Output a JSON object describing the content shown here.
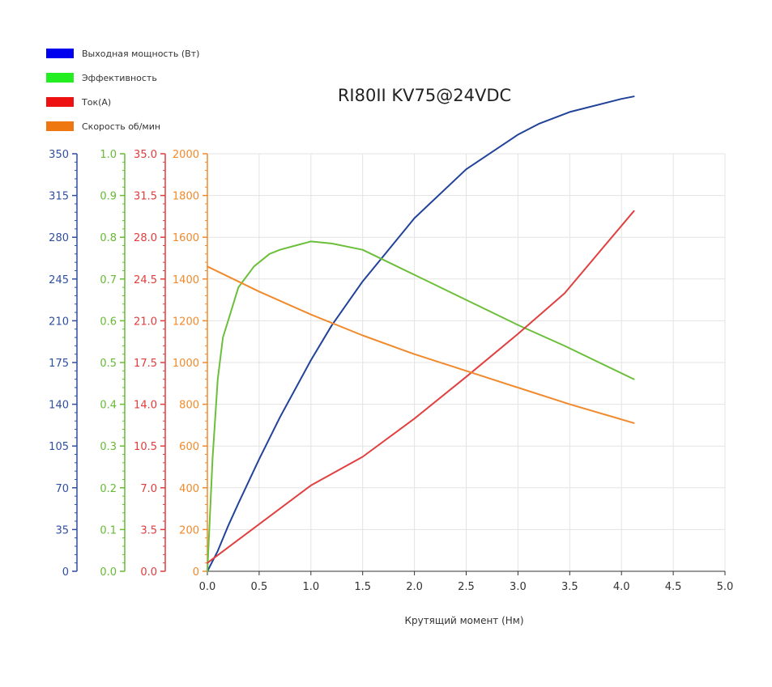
{
  "chart_data": {
    "type": "line",
    "title": "RI80II KV75@24VDC",
    "xlabel": "Крутящий момент (Нм)",
    "xlim": [
      0,
      5
    ],
    "x_ticks": [
      "0.0",
      "0.5",
      "1.0",
      "1.5",
      "2.0",
      "2.5",
      "3.0",
      "3.5",
      "4.0",
      "4.5",
      "5.0"
    ],
    "grid": true,
    "legend_position": "top-left",
    "y_axes": [
      {
        "id": "power",
        "color": "#2f4fa0",
        "min": 0,
        "max": 350,
        "ticks": [
          "0",
          "35",
          "70",
          "105",
          "140",
          "175",
          "210",
          "245",
          "280",
          "315",
          "350"
        ]
      },
      {
        "id": "efficiency",
        "color": "#66bb33",
        "min": 0,
        "max": 1,
        "ticks": [
          "0.0",
          "0.1",
          "0.2",
          "0.3",
          "0.4",
          "0.5",
          "0.6",
          "0.7",
          "0.8",
          "0.9",
          "1.0"
        ]
      },
      {
        "id": "current",
        "color": "#e03c3c",
        "min": 0,
        "max": 35,
        "ticks": [
          "0.0",
          "3.5",
          "7.0",
          "10.5",
          "14.0",
          "17.5",
          "21.0",
          "24.5",
          "28.0",
          "31.5",
          "35.0"
        ]
      },
      {
        "id": "speed",
        "color": "#f08a2c",
        "min": 0,
        "max": 2000,
        "ticks": [
          "0",
          "200",
          "400",
          "600",
          "800",
          "1000",
          "1200",
          "1400",
          "1600",
          "1800",
          "2000"
        ]
      }
    ],
    "series": [
      {
        "name": "Выходная мощность (Вт)",
        "axis": "power",
        "color": "#214299",
        "legend_color": "#0000ee",
        "x": [
          0,
          0.1,
          0.2,
          0.3,
          0.5,
          0.7,
          1.0,
          1.2,
          1.5,
          2.0,
          2.5,
          3.0,
          3.2,
          3.5,
          4.0,
          4.12
        ],
        "y": [
          0,
          17,
          38,
          57,
          94,
          129,
          177,
          206,
          243,
          296,
          337,
          366,
          375,
          385,
          396,
          398
        ]
      },
      {
        "name": "Эффективность",
        "axis": "efficiency",
        "color": "#6cbf3a",
        "legend_color": "#22ee22",
        "x": [
          0,
          0.05,
          0.1,
          0.15,
          0.2,
          0.3,
          0.45,
          0.6,
          0.7,
          0.85,
          1.0,
          1.2,
          1.5,
          2.0,
          2.5,
          3.0,
          3.45,
          4.12
        ],
        "y": [
          0,
          0.27,
          0.46,
          0.56,
          0.6,
          0.68,
          0.73,
          0.76,
          0.77,
          0.78,
          0.79,
          0.785,
          0.77,
          0.71,
          0.65,
          0.59,
          0.54,
          0.46
        ]
      },
      {
        "name": "Ток(А)",
        "axis": "current",
        "color": "#e04040",
        "legend_color": "#ee1111",
        "x": [
          0,
          1.0,
          1.5,
          2.0,
          2.5,
          3.0,
          3.45,
          4.12
        ],
        "y": [
          0.7,
          7.2,
          9.6,
          12.8,
          16.3,
          19.9,
          23.3,
          30.2
        ]
      },
      {
        "name": "Скорость об/мин",
        "axis": "speed",
        "color": "#f08a2c",
        "legend_color": "#ee7711",
        "x": [
          0,
          0.5,
          1.0,
          1.5,
          2.0,
          2.5,
          3.0,
          3.5,
          4.12
        ],
        "y": [
          1460,
          1340,
          1230,
          1130,
          1040,
          960,
          880,
          800,
          710
        ]
      }
    ]
  }
}
